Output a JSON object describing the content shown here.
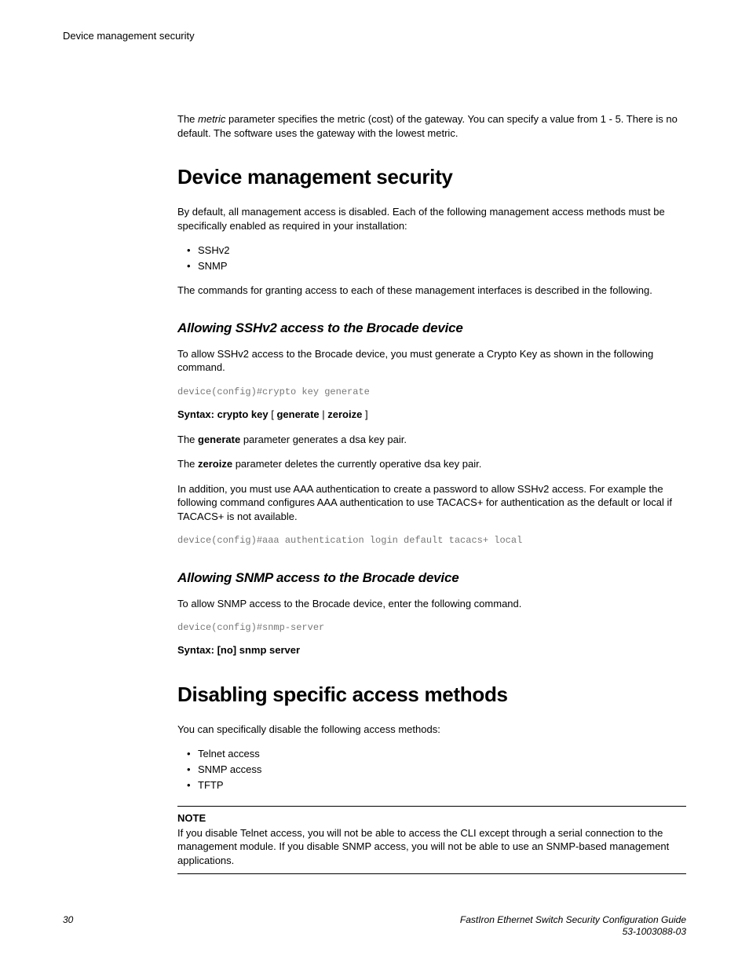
{
  "header": {
    "running": "Device management security"
  },
  "intro_para": {
    "prefix": "The ",
    "italic": "metric",
    "rest": " parameter specifies the metric (cost) of the gateway. You can specify a value from 1 - 5. There is no default. The software uses the gateway with the lowest metric."
  },
  "section1": {
    "title": "Device management security",
    "para1": "By default, all management access is disabled. Each of the following management access methods must be specifically enabled as required in your installation:",
    "list": [
      "SSHv2",
      "SNMP"
    ],
    "para2": "The commands for granting access to each of these management interfaces is described in the following."
  },
  "subsection_ssh": {
    "title": "Allowing SSHv2 access to the Brocade device",
    "para1": "To allow SSHv2 access to the Brocade device, you must generate a Crypto Key as shown in the following command.",
    "code1": "device(config)#crypto key generate",
    "syntax": {
      "prefix": "Syntax: crypto key",
      "bracket_open": " [ ",
      "opt1": "generate",
      "pipe": " | ",
      "opt2": "zeroize",
      "bracket_close": " ]"
    },
    "para_gen_pre": "The ",
    "para_gen_bold": "generate",
    "para_gen_post": " parameter generates a dsa key pair.",
    "para_zero_pre": "The ",
    "para_zero_bold": "zeroize",
    "para_zero_post": " parameter deletes the currently operative dsa key pair.",
    "para_aaa": "In addition, you must use AAA authentication to create a password to allow SSHv2 access. For example the following command configures AAA authentication to use TACACS+ for authentication as the default or local if TACACS+ is not available.",
    "code2": "device(config)#aaa authentication login default tacacs+ local"
  },
  "subsection_snmp": {
    "title": "Allowing SNMP access to the Brocade device",
    "para1": "To allow SNMP access to the Brocade device, enter the following command.",
    "code1": "device(config)#snmp-server",
    "syntax": "Syntax: [no] snmp server"
  },
  "section2": {
    "title": "Disabling specific access methods",
    "para1": "You can specifically disable the following access methods:",
    "list": [
      "Telnet access",
      "SNMP access",
      "TFTP"
    ]
  },
  "note": {
    "label": "NOTE",
    "body": "If you disable Telnet access, you will not be able to access the CLI except through a serial connection to the management module. If you disable SNMP access, you will not be able to use an SNMP-based management applications."
  },
  "footer": {
    "page": "30",
    "doc_title": "FastIron Ethernet Switch Security Configuration Guide",
    "doc_num": "53-1003088-03"
  }
}
